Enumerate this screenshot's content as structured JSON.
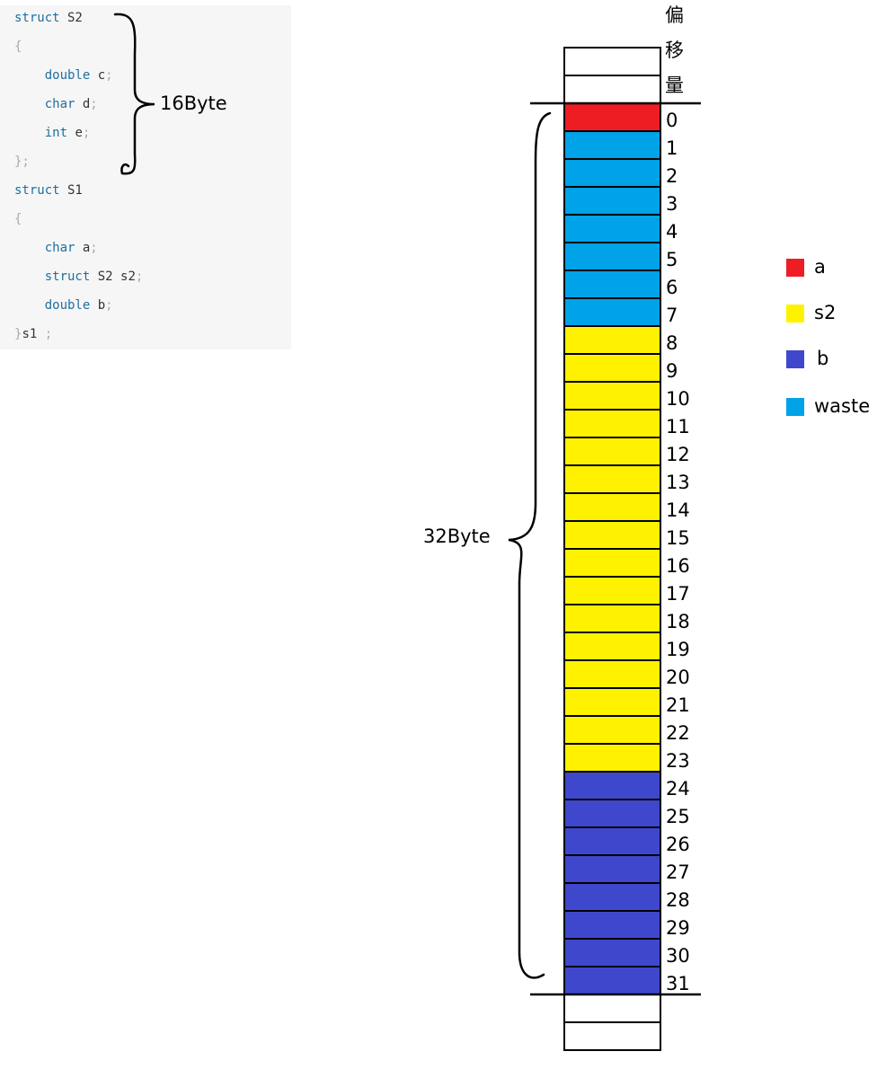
{
  "code": {
    "lines": [
      [
        {
          "t": "struct",
          "c": "kw"
        },
        {
          "t": " S2",
          "c": "id"
        }
      ],
      [
        {
          "t": "{",
          "c": "pn"
        }
      ],
      [
        {
          "t": "    double",
          "c": "kw"
        },
        {
          "t": " c",
          "c": "id"
        },
        {
          "t": ";",
          "c": "pn"
        }
      ],
      [
        {
          "t": "    char",
          "c": "kw"
        },
        {
          "t": " d",
          "c": "id"
        },
        {
          "t": ";",
          "c": "pn"
        }
      ],
      [
        {
          "t": "    int",
          "c": "kw"
        },
        {
          "t": " e",
          "c": "id"
        },
        {
          "t": ";",
          "c": "pn"
        }
      ],
      [
        {
          "t": "};",
          "c": "pn"
        }
      ],
      [
        {
          "t": "struct",
          "c": "kw"
        },
        {
          "t": " S1",
          "c": "id"
        }
      ],
      [
        {
          "t": "{",
          "c": "pn"
        }
      ],
      [
        {
          "t": "    char",
          "c": "kw"
        },
        {
          "t": " a",
          "c": "id"
        },
        {
          "t": ";",
          "c": "pn"
        }
      ],
      [
        {
          "t": "    struct",
          "c": "kw"
        },
        {
          "t": " S2 s2",
          "c": "id"
        },
        {
          "t": ";",
          "c": "pn"
        }
      ],
      [
        {
          "t": "    double",
          "c": "kw"
        },
        {
          "t": " b",
          "c": "id"
        },
        {
          "t": ";",
          "c": "pn"
        }
      ],
      [
        {
          "t": "}",
          "c": "pn"
        },
        {
          "t": "s1",
          "c": "id"
        },
        {
          "t": " ;",
          "c": "pn"
        }
      ]
    ]
  },
  "labels": {
    "s2_size": "16Byte",
    "s1_size": "32Byte",
    "offset_header": [
      "偏",
      "移",
      "量"
    ]
  },
  "colors": {
    "a": "#ee1d23",
    "waste": "#00a2e8",
    "s2": "#fff200",
    "b": "#3f48cc",
    "empty": "#ffffff"
  },
  "memory": {
    "offsets": [
      0,
      1,
      2,
      3,
      4,
      5,
      6,
      7,
      8,
      9,
      10,
      11,
      12,
      13,
      14,
      15,
      16,
      17,
      18,
      19,
      20,
      21,
      22,
      23,
      24,
      25,
      26,
      27,
      28,
      29,
      30,
      31
    ],
    "cells": [
      "a",
      "waste",
      "waste",
      "waste",
      "waste",
      "waste",
      "waste",
      "waste",
      "s2",
      "s2",
      "s2",
      "s2",
      "s2",
      "s2",
      "s2",
      "s2",
      "s2",
      "s2",
      "s2",
      "s2",
      "s2",
      "s2",
      "s2",
      "s2",
      "b",
      "b",
      "b",
      "b",
      "b",
      "b",
      "b",
      "b"
    ],
    "empty_cells_above": 2,
    "empty_cells_below": 2
  },
  "legend": [
    {
      "key": "a",
      "label": "a"
    },
    {
      "key": "s2",
      "label": "s2"
    },
    {
      "key": "b",
      "label": "b"
    },
    {
      "key": "waste",
      "label": "waste"
    }
  ]
}
